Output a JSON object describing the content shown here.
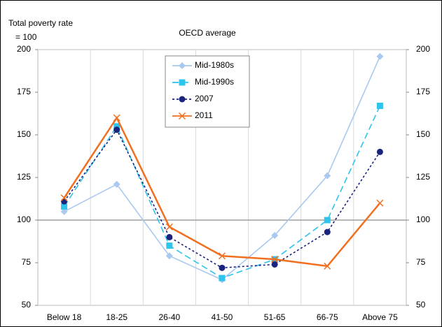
{
  "chart_data": {
    "type": "line",
    "title": "OECD average",
    "y_label": [
      "Total poverty rate",
      "= 100"
    ],
    "categories": [
      "Below 18",
      "18-25",
      "26-40",
      "41-50",
      "51-65",
      "66-75",
      "Above 75"
    ],
    "series": [
      {
        "name": "Mid-1980s",
        "color": "#a9c9ef",
        "marker": "diamond",
        "dash": "solid",
        "values": [
          105,
          121,
          79,
          65,
          91,
          126,
          196
        ]
      },
      {
        "name": "Mid-1990s",
        "color": "#2ec4ec",
        "marker": "square",
        "dash": "dashed",
        "values": [
          108,
          155,
          85,
          66,
          77,
          100,
          167
        ]
      },
      {
        "name": "2007",
        "color": "#1a237e",
        "marker": "circle",
        "dash": "dotted",
        "values": [
          111,
          153,
          90,
          72,
          74,
          93,
          140
        ]
      },
      {
        "name": "2011",
        "color": "#f07020",
        "marker": "x",
        "dash": "solid",
        "values": [
          113,
          160,
          96,
          79,
          77,
          73,
          110
        ]
      }
    ],
    "ylim": [
      50,
      200
    ],
    "yticks": [
      50,
      75,
      100,
      125,
      150,
      175,
      200
    ],
    "y2lim": [
      50,
      200
    ],
    "y2ticks": [
      50,
      75,
      100,
      125,
      150,
      175,
      200
    ],
    "reference_line": 100,
    "grid": true,
    "legend": "top"
  }
}
